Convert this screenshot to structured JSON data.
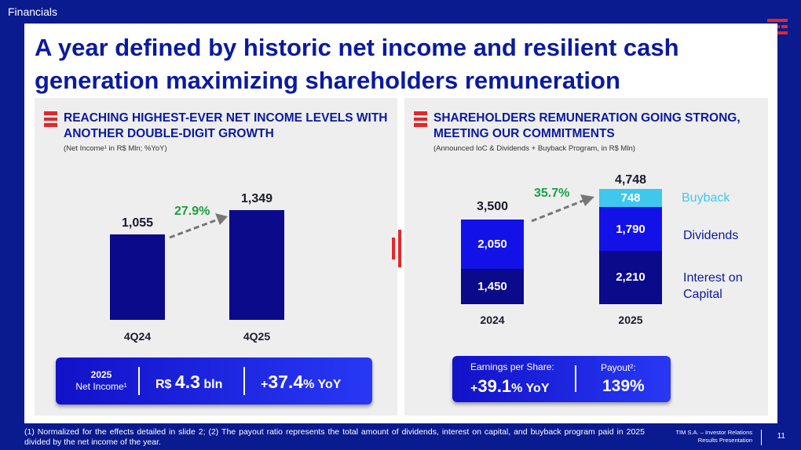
{
  "section": "Financials",
  "title": "A year defined by historic net income and resilient cash generation maximizing shareholders remuneration",
  "colors": {
    "brand": "#0a1a8f",
    "red": "#e3262b",
    "bar_light": "#3ec8ee",
    "bar_mid": "#1212e8",
    "bar_dark": "#0a0a8a",
    "growth": "#1aa040"
  },
  "left": {
    "heading": "REACHING HIGHEST-EVER NET INCOME LEVELS WITH ANOTHER DOUBLE-DIGIT GROWTH",
    "subtitle": "(Net Income¹ in R$ Mln; %YoY)",
    "growth": "27.9%",
    "summary": {
      "year": "2025",
      "label": "Net Income¹",
      "currency": "R$",
      "amount": "4.3",
      "unit": "bln",
      "yoy_prefix": "+",
      "yoy_value": "37.4",
      "yoy_suffix": "% YoY"
    }
  },
  "right": {
    "heading": "SHAREHOLDERS REMUNERATION GOING STRONG, MEETING OUR COMMITMENTS",
    "subtitle": "(Announced IoC & Dividends + Buyback Program, in R$ Mln)",
    "growth": "35.7%",
    "legend": {
      "buyback": "Buyback",
      "dividends": "Dividends",
      "ioc": "Interest on Capital"
    },
    "eps": {
      "label": "Earnings per Share:",
      "prefix": "+",
      "value": "39.1",
      "suffix": "% YoY"
    },
    "payout": {
      "label": "Payout²:",
      "value": "139%"
    }
  },
  "chart_data": [
    {
      "type": "bar",
      "title": "REACHING HIGHEST-EVER NET INCOME LEVELS WITH ANOTHER DOUBLE-DIGIT GROWTH",
      "categories": [
        "4Q24",
        "4Q25"
      ],
      "values": [
        1055,
        1349
      ],
      "value_labels": [
        "1,055",
        "1,349"
      ],
      "annotation": "27.9%",
      "ylabel": "Net Income (R$ Mln)",
      "ylim": [
        0,
        1500
      ]
    },
    {
      "type": "bar",
      "stacked": true,
      "title": "SHAREHOLDERS REMUNERATION GOING STRONG, MEETING OUR COMMITMENTS",
      "categories": [
        "2024",
        "2025"
      ],
      "series": [
        {
          "name": "Interest on Capital",
          "values": [
            1450,
            2210
          ],
          "labels": [
            "1,450",
            "2,210"
          ]
        },
        {
          "name": "Dividends",
          "values": [
            2050,
            1790
          ],
          "labels": [
            "2,050",
            "1,790"
          ]
        },
        {
          "name": "Buyback",
          "values": [
            0,
            748
          ],
          "labels": [
            "",
            "748"
          ]
        }
      ],
      "totals": [
        "3,500",
        "4,748"
      ],
      "annotation": "35.7%",
      "ylim": [
        0,
        5000
      ]
    }
  ],
  "footnote": "(1)   Normalized for the effects detailed in slide 2; (2)    The payout ratio represents the total amount of dividends, interest on capital, and buyback program paid in 2025 divided by the net income of the year.",
  "corporate": {
    "line1": "TIM S.A. – Investor Relations",
    "line2": "Results Presentation"
  },
  "page_number": "11"
}
